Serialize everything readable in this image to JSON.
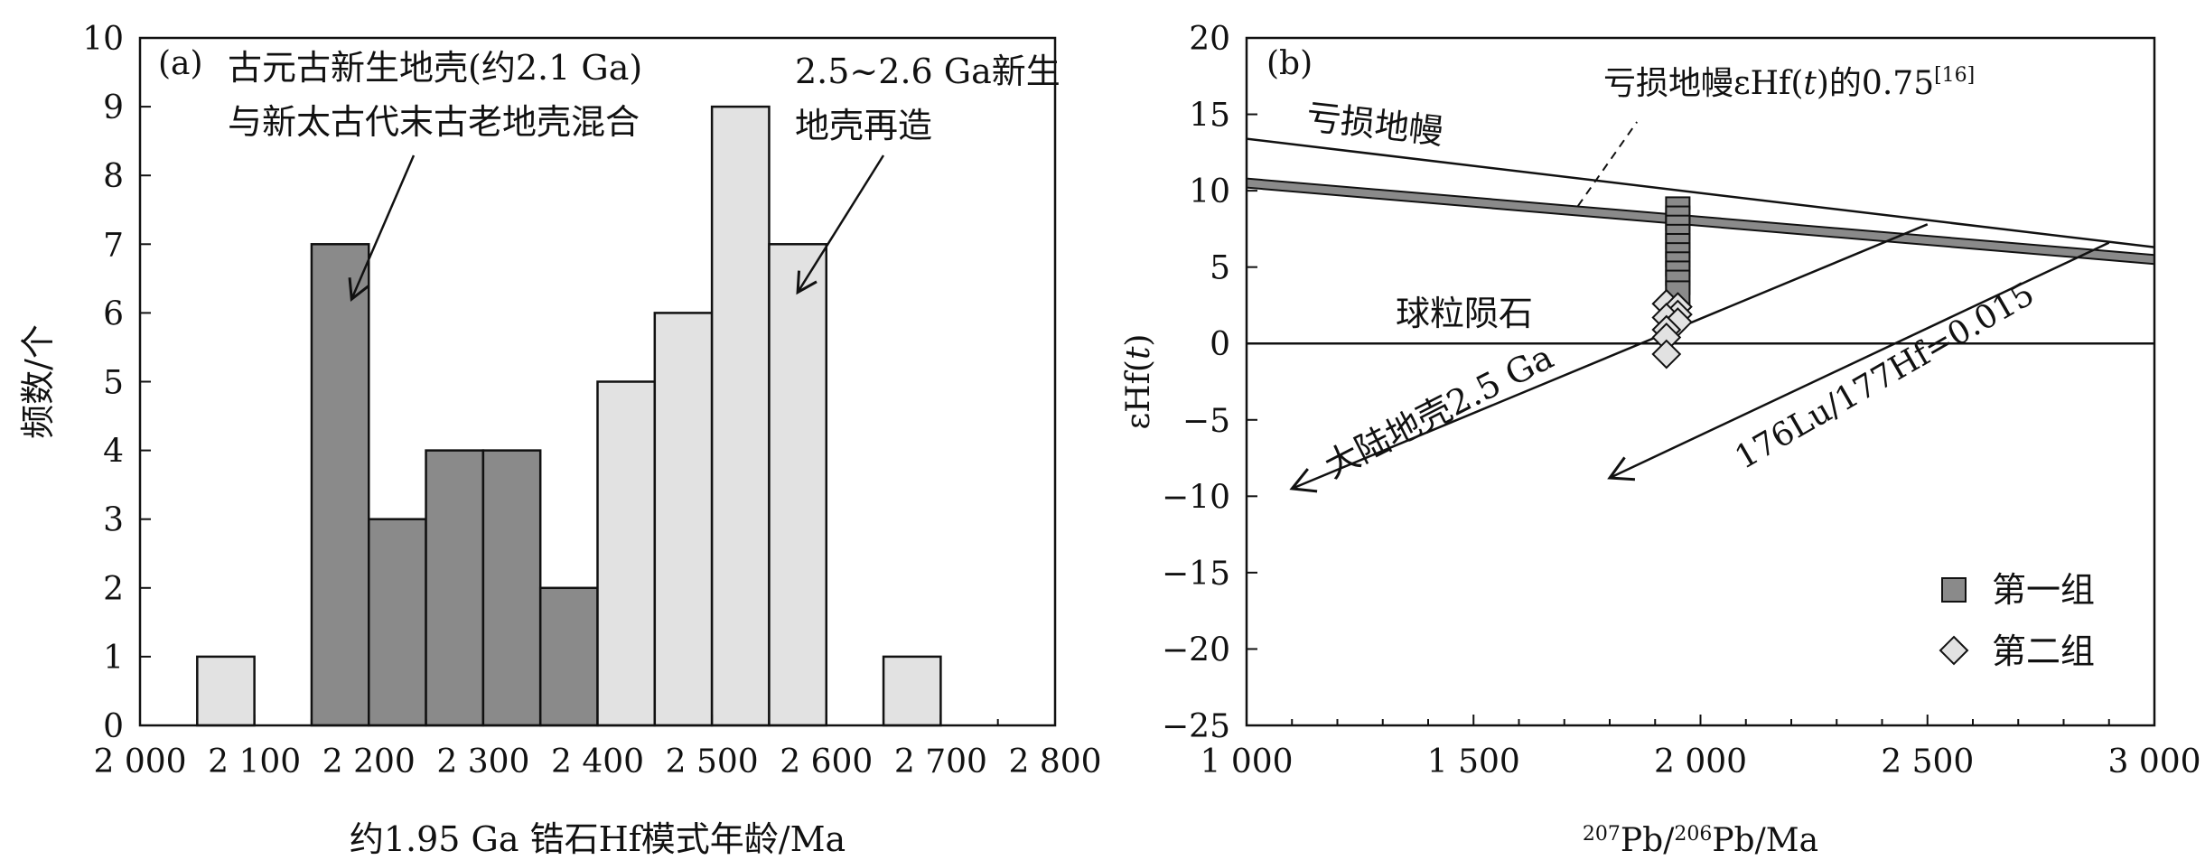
{
  "chart_data": [
    {
      "panel": "(a)",
      "type": "bar",
      "xlabel": "约1.95 Ga 锆石Hf模式年龄/Ma",
      "ylabel": "频数/个",
      "xlim": [
        2000,
        2800
      ],
      "ylim": [
        0,
        10
      ],
      "x_ticks": [
        2000,
        2100,
        2200,
        2300,
        2400,
        2500,
        2600,
        2700,
        2800
      ],
      "x_tick_labels": [
        "2 000",
        "2 100",
        "2 200",
        "2 300",
        "2 400",
        "2 500",
        "2 600",
        "2 700",
        "2 800"
      ],
      "y_ticks": [
        0,
        1,
        2,
        3,
        4,
        5,
        6,
        7,
        8,
        9,
        10
      ],
      "y_tick_labels": [
        "0",
        "1",
        "2",
        "3",
        "4",
        "5",
        "6",
        "7",
        "8",
        "9",
        "10"
      ],
      "bin_width": 50,
      "bins": [
        {
          "start": 2050,
          "count": 1,
          "group": "light"
        },
        {
          "start": 2150,
          "count": 7,
          "group": "dark"
        },
        {
          "start": 2200,
          "count": 3,
          "group": "dark"
        },
        {
          "start": 2250,
          "count": 4,
          "group": "dark"
        },
        {
          "start": 2300,
          "count": 4,
          "group": "dark"
        },
        {
          "start": 2350,
          "count": 2,
          "group": "dark"
        },
        {
          "start": 2400,
          "count": 5,
          "group": "light"
        },
        {
          "start": 2450,
          "count": 6,
          "group": "light"
        },
        {
          "start": 2500,
          "count": 9,
          "group": "light"
        },
        {
          "start": 2550,
          "count": 7,
          "group": "light"
        },
        {
          "start": 2650,
          "count": 1,
          "group": "light"
        }
      ],
      "colors": {
        "dark": "#8a8a8a",
        "light": "#e2e2e2",
        "edge": "#111111"
      },
      "annotations": [
        {
          "lines": [
            "古元古新生地壳(约2.1 Ga)",
            "与新太古代末古老地壳混合"
          ],
          "arrow_to": [
            2185,
            6.2
          ]
        },
        {
          "lines": [
            "2.5~2.6 Ga新生",
            "地壳再造"
          ],
          "arrow_to": [
            2575,
            6.3
          ]
        }
      ]
    },
    {
      "panel": "(b)",
      "type": "scatter",
      "xlabel": "207Pb/206Pb/Ma",
      "ylabel": "εHf(t)",
      "xlim": [
        1000,
        3000
      ],
      "ylim": [
        -25,
        20
      ],
      "x_ticks": [
        1000,
        1500,
        2000,
        2500,
        3000
      ],
      "x_tick_labels": [
        "1 000",
        "1 500",
        "2 000",
        "2 500",
        "3 000"
      ],
      "y_ticks": [
        -25,
        -20,
        -15,
        -10,
        -5,
        0,
        5,
        10,
        15,
        20
      ],
      "y_tick_labels": [
        "−25",
        "−20",
        "−15",
        "−10",
        "−5",
        "0",
        "5",
        "10",
        "15",
        "20"
      ],
      "series": [
        {
          "name": "第一组",
          "marker": "square",
          "color": "#8a8a8a",
          "points": [
            [
              1950,
              8.8
            ],
            [
              1950,
              8.2
            ],
            [
              1950,
              7.6
            ],
            [
              1950,
              7.0
            ],
            [
              1950,
              6.4
            ],
            [
              1950,
              5.8
            ],
            [
              1950,
              5.2
            ],
            [
              1950,
              4.6
            ],
            [
              1950,
              4.0
            ],
            [
              1950,
              3.3
            ]
          ]
        },
        {
          "name": "第二组",
          "marker": "diamond",
          "color": "#e2e2e2",
          "points": [
            [
              1925,
              2.6
            ],
            [
              1950,
              2.4
            ],
            [
              1950,
              1.9
            ],
            [
              1925,
              1.7
            ],
            [
              1950,
              1.4
            ],
            [
              1925,
              0.9
            ],
            [
              1925,
              0.4
            ],
            [
              1925,
              -0.7
            ]
          ]
        }
      ],
      "reference_lines": [
        {
          "label": "亏损地幔",
          "from": [
            1000,
            13.4
          ],
          "to": [
            3000,
            6.3
          ]
        },
        {
          "label": "亏损地幔εHf(t)的0.75",
          "superscript": "[16]",
          "from": [
            1000,
            10.5
          ],
          "to": [
            3000,
            5.5
          ],
          "band": true
        },
        {
          "label": "球粒陨石",
          "from": [
            1000,
            0
          ],
          "to": [
            3000,
            0
          ]
        },
        {
          "label": "大陆地壳2.5 Ga",
          "from": [
            2500,
            7.8
          ],
          "to": [
            1100,
            -9.5
          ]
        },
        {
          "label": "176Lu/177Hf=0.015",
          "from": [
            2900,
            6.6
          ],
          "to": [
            1800,
            -8.8
          ]
        }
      ],
      "legend_position": "bottom-right"
    }
  ]
}
